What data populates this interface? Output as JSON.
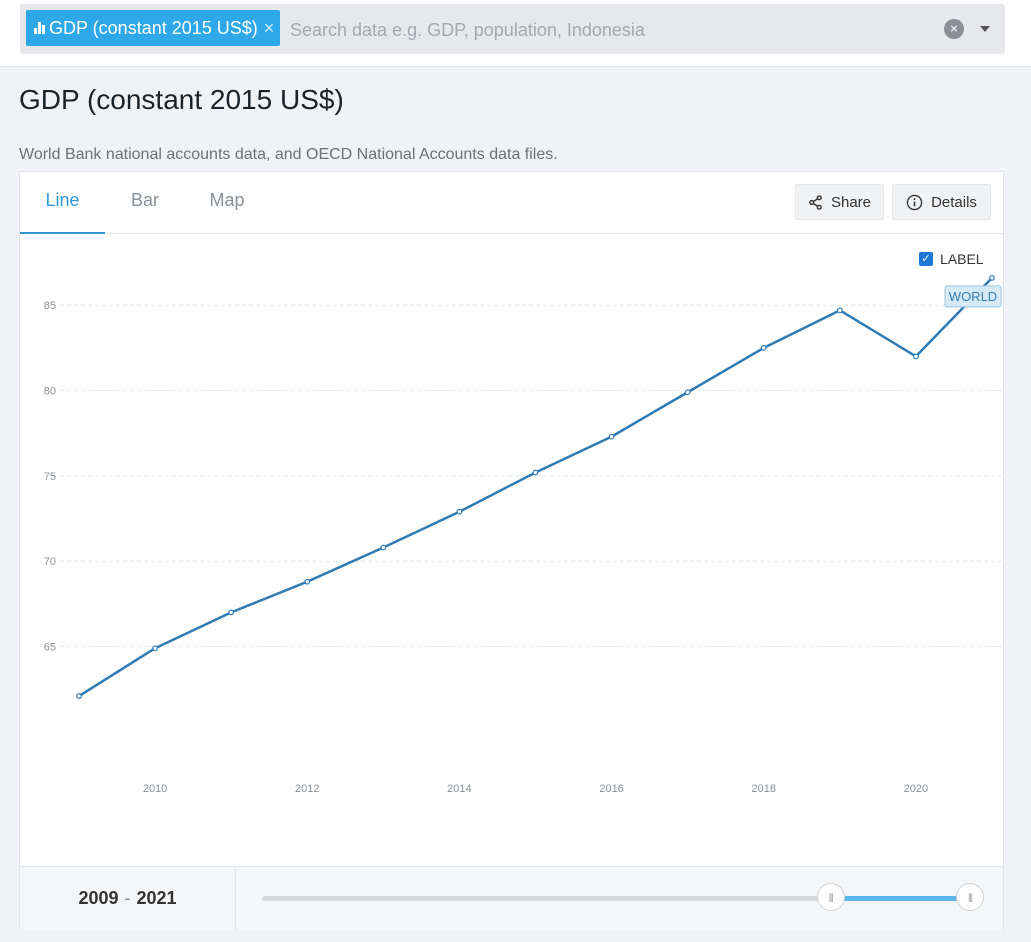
{
  "search": {
    "chip_label": "GDP (constant 2015 US$)",
    "chip_remove": "×",
    "placeholder": "Search data e.g. GDP, population, Indonesia",
    "clear": "×"
  },
  "page": {
    "title": "GDP (constant 2015 US$)",
    "source": "World Bank national accounts data, and OECD National Accounts data files."
  },
  "tabs": [
    {
      "label": "Line",
      "active": true
    },
    {
      "label": "Bar",
      "active": false
    },
    {
      "label": "Map",
      "active": false
    }
  ],
  "actions": {
    "share": "Share",
    "details": "Details"
  },
  "label_toggle": {
    "text": "LABEL",
    "checked": true
  },
  "colors": {
    "accent": "#2e97d4",
    "line": "#2f7bb4",
    "chip": "#2ea8e9"
  },
  "range": {
    "start": "2009",
    "end": "2021",
    "separator": "-",
    "min": 1960,
    "max": 2021
  },
  "chart_data": {
    "type": "line",
    "title": "",
    "xlabel": "",
    "ylabel": "",
    "x": [
      2009,
      2010,
      2011,
      2012,
      2013,
      2014,
      2015,
      2016,
      2017,
      2018,
      2019,
      2020,
      2021
    ],
    "series": [
      {
        "name": "WORLD",
        "values": [
          62.1,
          64.9,
          67.0,
          68.8,
          70.8,
          72.9,
          75.2,
          77.3,
          79.9,
          82.5,
          84.7,
          82.0,
          86.6
        ]
      }
    ],
    "xticks": [
      2010,
      2012,
      2014,
      2016,
      2018,
      2020
    ],
    "yticks": [
      65,
      70,
      75,
      80,
      85
    ],
    "xlim": [
      2009,
      2021
    ],
    "ylim": [
      58,
      88
    ],
    "grid": true,
    "label_position": "end"
  }
}
